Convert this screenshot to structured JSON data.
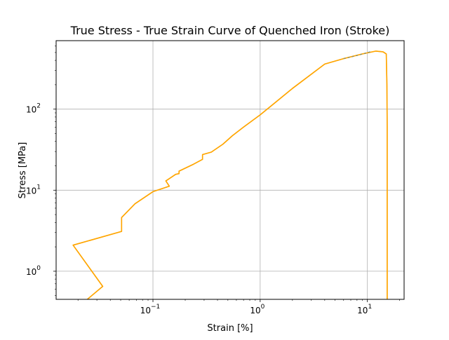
{
  "chart_data": {
    "type": "line",
    "title": "True Stress - True Strain Curve of Quenched Iron (Stroke)",
    "xlabel": "Strain [%]",
    "ylabel": "Stress [MPa]",
    "xscale": "log",
    "yscale": "log",
    "xlim": [
      0.0125,
      22
    ],
    "ylim": [
      0.45,
      700
    ],
    "grid": true,
    "x_ticks": [
      {
        "value": 0.1,
        "base": "10",
        "exp": "−1"
      },
      {
        "value": 1,
        "base": "10",
        "exp": "0"
      },
      {
        "value": 10,
        "base": "10",
        "exp": "1"
      }
    ],
    "y_ticks": [
      {
        "value": 1,
        "base": "10",
        "exp": "0"
      },
      {
        "value": 10,
        "base": "10",
        "exp": "1"
      },
      {
        "value": 100,
        "base": "10",
        "exp": "2"
      }
    ],
    "colors": {
      "primary_line": "#FFA500",
      "secondary_line": "#1f77b4",
      "grid": "#b0b0b0",
      "axes": "#000000"
    },
    "series": [
      {
        "x": [
          0.022,
          0.034,
          0.018,
          0.051,
          0.051,
          0.068,
          0.1,
          0.142,
          0.132,
          0.163,
          0.175,
          0.175,
          0.24,
          0.29,
          0.29,
          0.35,
          0.45,
          0.55,
          0.7,
          1.0,
          2.0,
          4.0,
          6.0,
          9.0,
          12.0,
          14.0,
          15.0,
          15.2,
          15.3,
          15.3,
          15.3
        ],
        "y": [
          0.4,
          0.65,
          2.1,
          3.1,
          4.6,
          6.8,
          9.6,
          11.2,
          13.0,
          15.7,
          16.0,
          17.2,
          21.0,
          24.0,
          27.5,
          29.5,
          37.0,
          47.0,
          60.0,
          85.0,
          180.0,
          360.0,
          420.0,
          480.0,
          520.0,
          510.0,
          480.0,
          200.0,
          60.0,
          5.0,
          0.4
        ]
      },
      {
        "x": [
          6.0,
          8.0,
          11.0
        ],
        "y": [
          420.0,
          460.0,
          515.0
        ]
      }
    ]
  }
}
